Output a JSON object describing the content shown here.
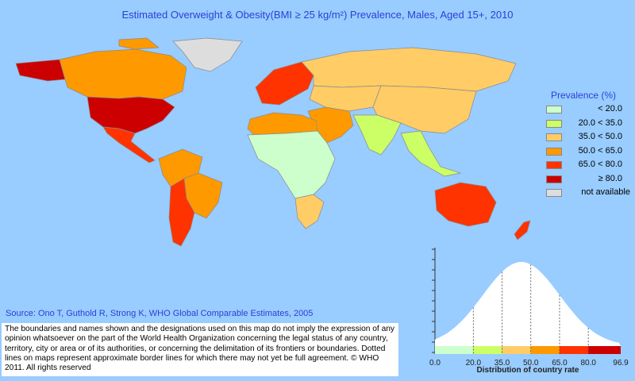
{
  "title": "Estimated Overweight & Obesity(BMI ≥ 25 kg/m²) Prevalence, Males, Aged 15+, 2010",
  "legend": {
    "title": "Prevalence (%)",
    "items": [
      {
        "label": "< 20.0",
        "color": "#ccffcc"
      },
      {
        "label": "20.0 < 35.0",
        "color": "#ccff66"
      },
      {
        "label": "35.0 < 50.0",
        "color": "#ffcc66"
      },
      {
        "label": "50.0 < 65.0",
        "color": "#ff9900"
      },
      {
        "label": "65.0 < 80.0",
        "color": "#ff3300"
      },
      {
        "label": "≥ 80.0",
        "color": "#cc0000"
      },
      {
        "label": "not available",
        "color": "#dddddd"
      }
    ]
  },
  "source": "Source: Ono T, Guthold R, Strong K, WHO Global Comparable Estimates, 2005",
  "disclaimer": "The boundaries and names shown and the designations used on this map do not imply the expression of any opinion whatsoever on the part of the World Health Organization concerning the legal status of any country, territory, city or area or of its authorities, or concerning the delimitation of its frontiers or boundaries. Dotted lines on maps represent approximate border lines for which there may not yet be full agreement. © WHO 2011. All rights reserved",
  "distribution": {
    "xlabel": "Distribution of country rate",
    "ticks": [
      "0.0",
      "20.0",
      "35.0",
      "50.0",
      "65.0",
      "80.0",
      "96.9"
    ],
    "tick_values": [
      0,
      20,
      35,
      50,
      65,
      80,
      96.9
    ],
    "xlim": [
      0,
      96.9
    ],
    "bands": [
      {
        "from": 0,
        "to": 20,
        "color": "#ccffcc"
      },
      {
        "from": 20,
        "to": 35,
        "color": "#ccff66"
      },
      {
        "from": 35,
        "to": 50,
        "color": "#ffcc66"
      },
      {
        "from": 50,
        "to": 65,
        "color": "#ff9900"
      },
      {
        "from": 65,
        "to": 80,
        "color": "#ff3300"
      },
      {
        "from": 80,
        "to": 96.9,
        "color": "#cc0000"
      }
    ],
    "curve_peak": 45
  },
  "regions": [
    {
      "name": "north-america-usa",
      "class": "≥ 80.0"
    },
    {
      "name": "canada",
      "class": "50.0 < 65.0"
    },
    {
      "name": "alaska",
      "class": "≥ 80.0"
    },
    {
      "name": "greenland",
      "class": "not available"
    },
    {
      "name": "mexico-central-america",
      "class": "65.0 < 80.0"
    },
    {
      "name": "south-america-north",
      "class": "50.0 < 65.0"
    },
    {
      "name": "brazil",
      "class": "50.0 < 65.0"
    },
    {
      "name": "argentina-chile",
      "class": "65.0 < 80.0"
    },
    {
      "name": "europe",
      "class": "65.0 < 80.0"
    },
    {
      "name": "russia",
      "class": "35.0 < 50.0"
    },
    {
      "name": "north-africa",
      "class": "50.0 < 65.0"
    },
    {
      "name": "sub-saharan-africa",
      "class": "< 20.0"
    },
    {
      "name": "southern-africa",
      "class": "35.0 < 50.0"
    },
    {
      "name": "middle-east",
      "class": "50.0 < 65.0"
    },
    {
      "name": "central-asia",
      "class": "35.0 < 50.0"
    },
    {
      "name": "south-asia",
      "class": "20.0 < 35.0"
    },
    {
      "name": "china",
      "class": "35.0 < 50.0"
    },
    {
      "name": "southeast-asia",
      "class": "20.0 < 35.0"
    },
    {
      "name": "australia",
      "class": "65.0 < 80.0"
    },
    {
      "name": "new-zealand",
      "class": "65.0 < 80.0"
    }
  ]
}
